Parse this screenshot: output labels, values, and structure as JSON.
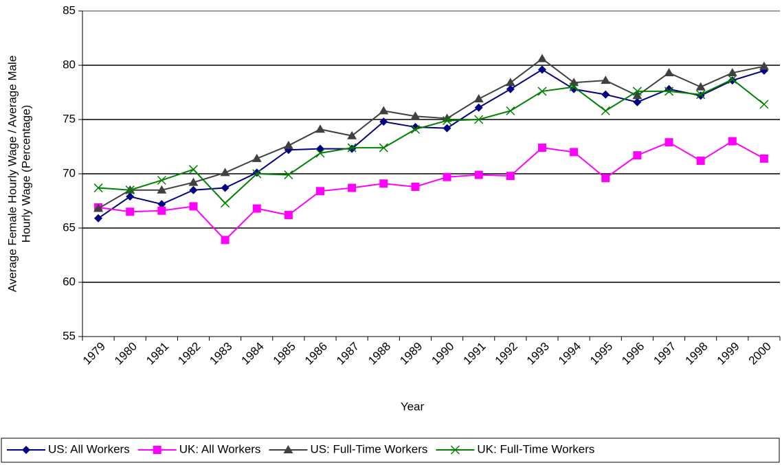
{
  "chart_data": {
    "type": "line",
    "ylabel": [
      "Average Female Hourly Wage / Average Male",
      "Hourly Wage (Percentage)"
    ],
    "xlabel": "Year",
    "categories": [
      "1979",
      "1980",
      "1981",
      "1982",
      "1983",
      "1984",
      "1985",
      "1986",
      "1987",
      "1988",
      "1989",
      "1990",
      "1991",
      "1992",
      "1993",
      "1994",
      "1995",
      "1996",
      "1997",
      "1998",
      "1999",
      "2000"
    ],
    "series": [
      {
        "name": "US: All Workers",
        "color": "#000080",
        "marker": "diamond",
        "values": [
          65.9,
          67.9,
          67.2,
          68.5,
          68.7,
          70.1,
          72.2,
          72.3,
          72.3,
          74.8,
          74.3,
          74.2,
          76.1,
          77.8,
          79.6,
          77.8,
          77.3,
          76.6,
          77.8,
          77.2,
          78.6,
          79.5
        ]
      },
      {
        "name": "UK: All Workers",
        "color": "#ff00ff",
        "marker": "square",
        "values": [
          66.9,
          66.5,
          66.6,
          67.0,
          63.9,
          66.8,
          66.2,
          68.4,
          68.7,
          69.1,
          68.8,
          69.7,
          69.9,
          69.8,
          72.4,
          72.0,
          69.6,
          71.7,
          72.9,
          71.2,
          73.0,
          71.4
        ]
      },
      {
        "name": "US: Full-Time Workers",
        "color": "#404040",
        "marker": "triangle",
        "values": [
          66.8,
          68.5,
          68.5,
          69.2,
          70.1,
          71.4,
          72.6,
          74.1,
          73.5,
          75.8,
          75.3,
          75.1,
          76.9,
          78.4,
          80.6,
          78.4,
          78.6,
          77.2,
          79.3,
          78.0,
          79.3,
          79.9
        ]
      },
      {
        "name": "UK: Full-Time Workers",
        "color": "#008000",
        "marker": "x",
        "values": [
          68.7,
          68.5,
          69.4,
          70.4,
          67.3,
          70.0,
          69.9,
          71.9,
          72.4,
          72.4,
          74.1,
          74.9,
          75.0,
          75.8,
          77.6,
          78.0,
          75.8,
          77.6,
          77.6,
          77.3,
          78.7,
          76.4
        ]
      }
    ],
    "ylim": [
      55,
      85
    ],
    "yticks": [
      55,
      60,
      65,
      70,
      75,
      80,
      85
    ],
    "grid": true,
    "legend": "bottom"
  }
}
